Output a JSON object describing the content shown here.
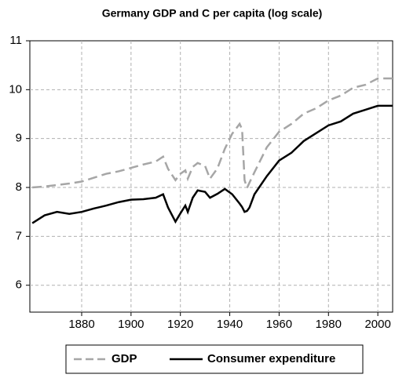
{
  "chart_data": {
    "type": "line",
    "title": "Germany GDP and C per capita (log scale)",
    "x": [
      1860,
      1865,
      1870,
      1875,
      1880,
      1885,
      1890,
      1895,
      1900,
      1905,
      1910,
      1913,
      1915,
      1918,
      1920,
      1922,
      1923,
      1925,
      1927,
      1930,
      1932,
      1935,
      1938,
      1941,
      1944,
      1945,
      1946,
      1947,
      1948,
      1950,
      1955,
      1960,
      1965,
      1970,
      1975,
      1980,
      1985,
      1990,
      1995,
      2000,
      2006
    ],
    "series": [
      {
        "name": "GDP",
        "color": "#a6a6a6",
        "dashed": true,
        "values": [
          8.0,
          8.02,
          8.05,
          8.08,
          8.12,
          8.2,
          8.28,
          8.33,
          8.4,
          8.47,
          8.53,
          8.63,
          8.38,
          8.15,
          8.28,
          8.35,
          8.18,
          8.42,
          8.5,
          8.44,
          8.18,
          8.39,
          8.79,
          9.1,
          9.3,
          9.19,
          8.15,
          7.99,
          8.1,
          8.31,
          8.82,
          9.14,
          9.3,
          9.51,
          9.62,
          9.78,
          9.88,
          10.04,
          10.1,
          10.23,
          10.23
        ]
      },
      {
        "name": "Consumer expenditure",
        "color": "#000000",
        "dashed": false,
        "values": [
          7.27,
          7.43,
          7.5,
          7.46,
          7.5,
          7.57,
          7.63,
          7.7,
          7.75,
          7.76,
          7.79,
          7.86,
          7.59,
          7.3,
          7.47,
          7.63,
          7.5,
          7.79,
          7.94,
          7.91,
          7.79,
          7.87,
          7.97,
          7.86,
          7.67,
          7.6,
          7.5,
          7.52,
          7.59,
          7.86,
          8.23,
          8.55,
          8.71,
          8.95,
          9.11,
          9.27,
          9.35,
          9.51,
          9.59,
          9.67,
          9.67
        ]
      }
    ],
    "xlim": [
      1859,
      2006
    ],
    "xticks": [
      1880,
      1900,
      1920,
      1940,
      1960,
      1980,
      2000
    ],
    "ylim": [
      5.45,
      11
    ],
    "yticks": [
      6,
      7,
      8,
      9,
      10,
      11
    ],
    "grid": true,
    "legend": "bottom"
  }
}
